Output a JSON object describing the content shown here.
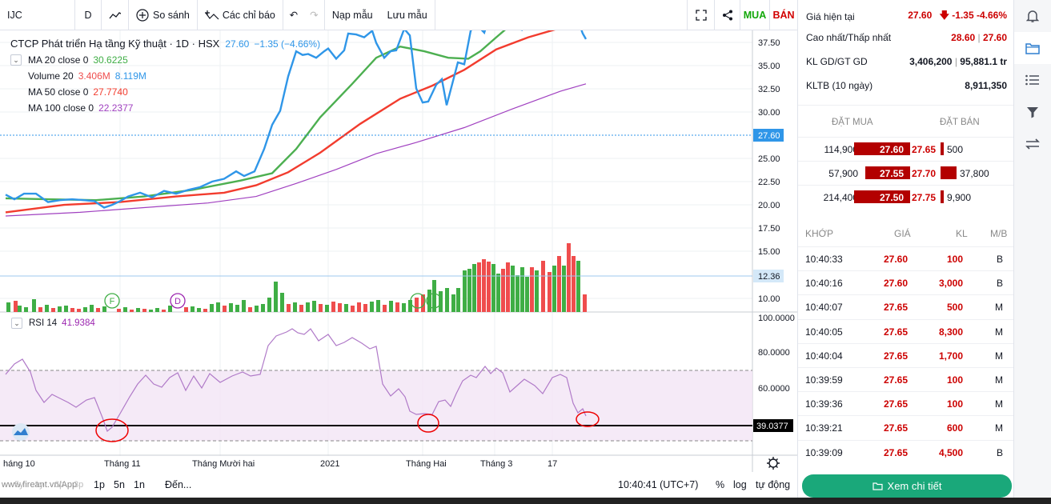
{
  "toolbar": {
    "symbol": "IJC",
    "interval": "D",
    "compare": "So sánh",
    "indicators": "Các chỉ báo",
    "load_template": "Nạp mẫu",
    "save_template": "Lưu mẫu",
    "buy": "MUA",
    "sell": "BÁN"
  },
  "legend": {
    "title": "CTCP Phát triển Hạ tầng Kỹ thuật · 1D · HSX",
    "price": "27.60",
    "change": "−1.35 (−4.66%)",
    "ma20_label": "MA 20 close 0",
    "ma20_value": "30.6225",
    "vol_label": "Volume 20",
    "vol_value": "3.406M",
    "vol_avg": "8.119M",
    "ma50_label": "MA 50 close 0",
    "ma50_value": "27.7740",
    "ma100_label": "MA 100 close 0",
    "ma100_value": "22.2377",
    "rsi_label": "RSI 14",
    "rsi_value": "41.9384"
  },
  "axis": {
    "price_ticks": [
      "37.50",
      "35.00",
      "32.50",
      "30.00",
      "27.60",
      "25.00",
      "22.50",
      "20.00",
      "17.50",
      "15.00",
      "12.36",
      "10.00"
    ],
    "rsi_ticks": [
      "100.0000",
      "80.0000",
      "60.0000",
      "39.0377"
    ],
    "time_labels": [
      "háng 10",
      "Tháng 11",
      "Tháng Mười hai",
      "2021",
      "Tháng Hai",
      "Tháng 3",
      "17"
    ],
    "markers": [
      "F",
      "D"
    ]
  },
  "bottom": {
    "watermark": "www.fireant.vn/App",
    "ranges": [
      "5y",
      "1y",
      "6p",
      "3p",
      "1p",
      "5n",
      "1n"
    ],
    "goto": "Đến...",
    "clock": "10:40:41 (UTC+7)",
    "percent": "%",
    "log": "log",
    "auto": "tự động"
  },
  "summary": {
    "current_label": "Giá hiện tại",
    "current_price": "27.60",
    "current_change": "-1.35 -4.66%",
    "hl_label": "Cao nhất/Thấp nhất",
    "high": "28.60",
    "low": "27.60",
    "vol_label": "KL GD/GT GD",
    "vol_value": "3,406,200",
    "val_value": "95,881.1 tr",
    "kltb_label": "KLTB (10 ngày)",
    "kltb_value": "8,911,350"
  },
  "orderbook": {
    "buy_header": "ĐẶT MUA",
    "sell_header": "ĐẶT BÁN",
    "rows": [
      {
        "bid_vol": "114,900",
        "bid": "27.60",
        "ask": "27.65",
        "ask_vol": "500"
      },
      {
        "bid_vol": "57,900",
        "bid": "27.55",
        "ask": "27.70",
        "ask_vol": "37,800"
      },
      {
        "bid_vol": "214,400",
        "bid": "27.50",
        "ask": "27.75",
        "ask_vol": "9,900"
      }
    ]
  },
  "trades": {
    "headers": [
      "KHỚP",
      "GIÁ",
      "KL",
      "M/B"
    ],
    "rows": [
      [
        "10:40:33",
        "27.60",
        "100",
        "B"
      ],
      [
        "10:40:16",
        "27.60",
        "3,000",
        "B"
      ],
      [
        "10:40:07",
        "27.65",
        "500",
        "M"
      ],
      [
        "10:40:05",
        "27.65",
        "8,300",
        "M"
      ],
      [
        "10:40:04",
        "27.65",
        "1,700",
        "M"
      ],
      [
        "10:39:59",
        "27.65",
        "100",
        "M"
      ],
      [
        "10:39:36",
        "27.65",
        "100",
        "M"
      ],
      [
        "10:39:21",
        "27.65",
        "600",
        "M"
      ],
      [
        "10:39:09",
        "27.65",
        "4,500",
        "B"
      ]
    ]
  },
  "detail_button": "Xem chi tiết",
  "colors": {
    "price_line": "#2f96e8",
    "ma20": "#4caf50",
    "ma50": "#f23c2e",
    "ma100": "#a040c0",
    "up": "#3fae45",
    "down": "#ef4d4d",
    "accent": "#1aa87a"
  }
}
